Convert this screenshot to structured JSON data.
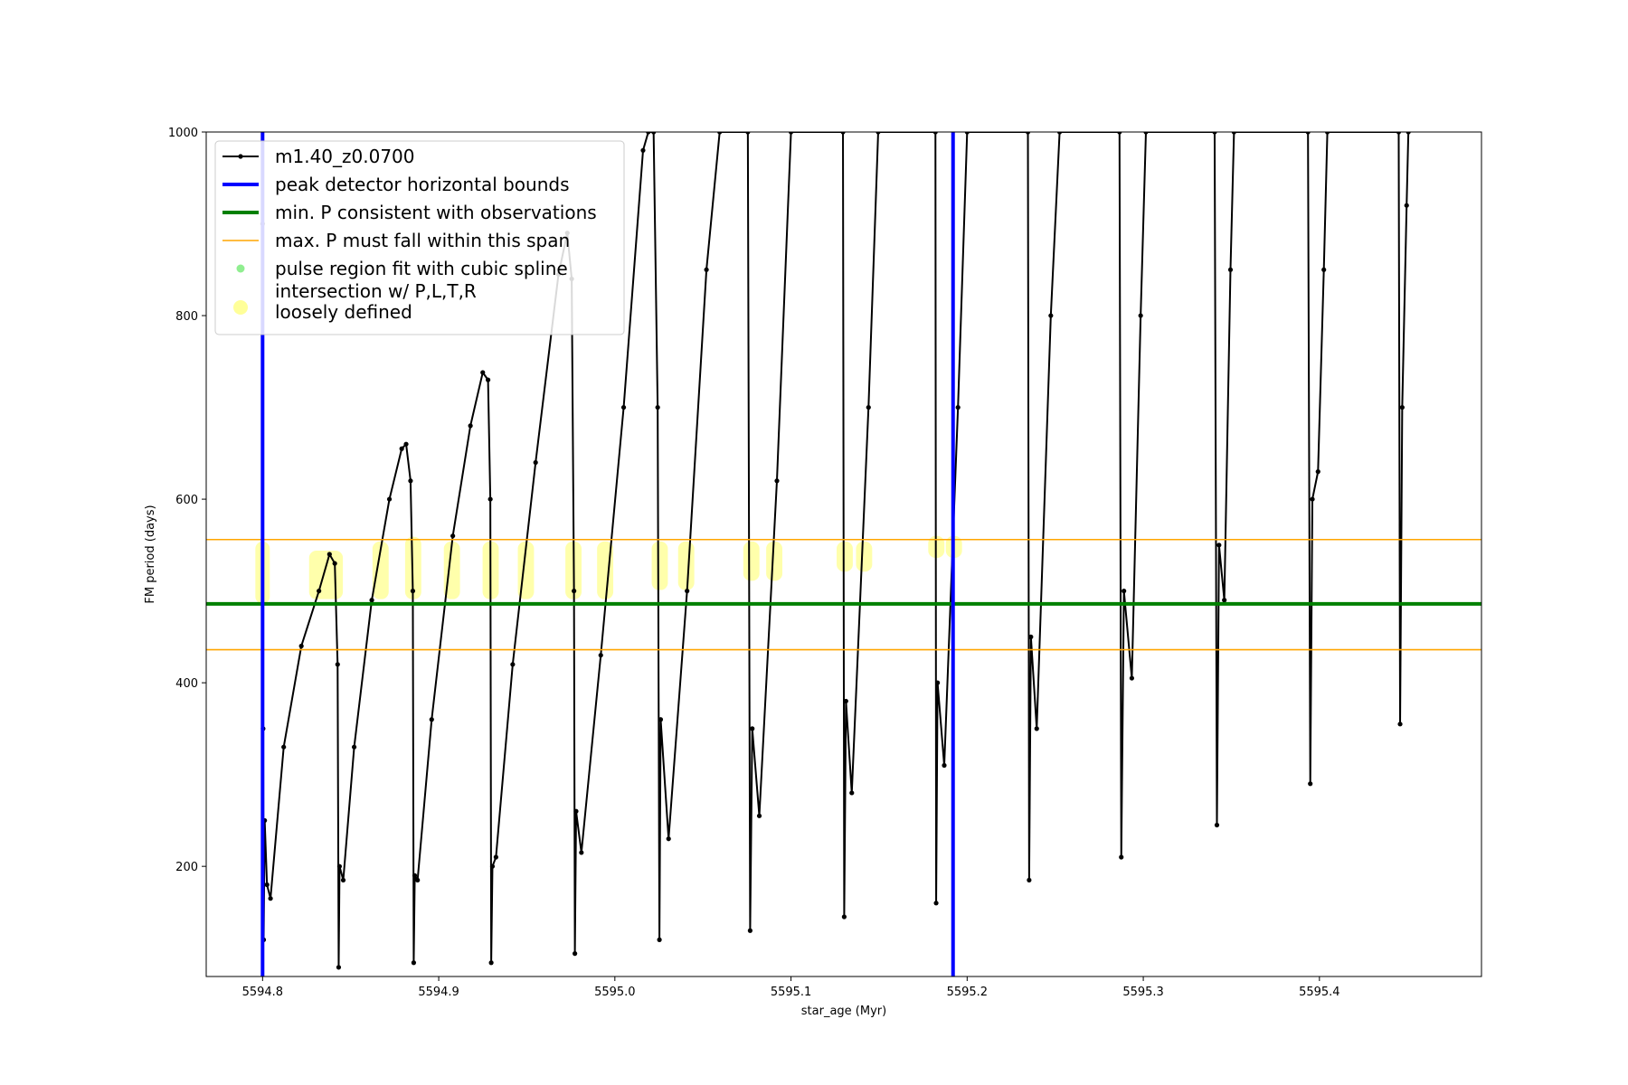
{
  "chart_data": {
    "type": "line",
    "xlabel": "star_age (Myr)",
    "ylabel": "FM period (days)",
    "xlim": [
      5594.768,
      5595.492
    ],
    "ylim": [
      80,
      1000
    ],
    "x_ticks": [
      "5594.8",
      "5594.9",
      "5595.0",
      "5595.1",
      "5595.2",
      "5595.3",
      "5595.4"
    ],
    "y_ticks": [
      "200",
      "400",
      "600",
      "800",
      "1000"
    ],
    "grid": false,
    "legend_position": "upper-left",
    "legend": [
      {
        "label": "m1.40_z0.0700",
        "kind": "line-marker",
        "color": "#000000"
      },
      {
        "label": "peak detector horizontal bounds",
        "kind": "line",
        "color": "#0000ff"
      },
      {
        "label": "min. P consistent with observations",
        "kind": "line",
        "color": "#008000"
      },
      {
        "label": "max. P must fall within this span",
        "kind": "line",
        "color": "#ffa500"
      },
      {
        "label": "pulse region fit with cubic spline",
        "kind": "dot",
        "color": "#90ee90"
      },
      {
        "label": "intersection w/ P,L,T,R",
        "label2": "loosely defined",
        "kind": "bigdot",
        "color": "#ffff99"
      }
    ],
    "series": [
      {
        "name": "m1.40_z0.0700",
        "color": "#000000",
        "points": [
          [
            5594.8,
            900
          ],
          [
            5594.8003,
            350
          ],
          [
            5594.8006,
            120
          ],
          [
            5594.8012,
            250
          ],
          [
            5594.8025,
            180
          ],
          [
            5594.8045,
            165
          ],
          [
            5594.812,
            330
          ],
          [
            5594.822,
            440
          ],
          [
            5594.832,
            500
          ],
          [
            5594.838,
            540
          ],
          [
            5594.841,
            530
          ],
          [
            5594.8426,
            420
          ],
          [
            5594.8432,
            90
          ],
          [
            5594.8437,
            200
          ],
          [
            5594.8458,
            185
          ],
          [
            5594.852,
            330
          ],
          [
            5594.862,
            490
          ],
          [
            5594.872,
            600
          ],
          [
            5594.879,
            655
          ],
          [
            5594.8815,
            660
          ],
          [
            5594.884,
            620
          ],
          [
            5594.8853,
            500
          ],
          [
            5594.8858,
            95
          ],
          [
            5594.8864,
            190
          ],
          [
            5594.888,
            185
          ],
          [
            5594.896,
            360
          ],
          [
            5594.908,
            560
          ],
          [
            5594.918,
            680
          ],
          [
            5594.925,
            738
          ],
          [
            5594.928,
            730
          ],
          [
            5594.9293,
            600
          ],
          [
            5594.9298,
            95
          ],
          [
            5594.9305,
            200
          ],
          [
            5594.9325,
            210
          ],
          [
            5594.942,
            420
          ],
          [
            5594.955,
            640
          ],
          [
            5594.968,
            845
          ],
          [
            5594.973,
            890
          ],
          [
            5594.9755,
            840
          ],
          [
            5594.9768,
            500
          ],
          [
            5594.9773,
            105
          ],
          [
            5594.978,
            260
          ],
          [
            5594.981,
            215
          ],
          [
            5594.992,
            430
          ],
          [
            5595.005,
            700
          ],
          [
            5595.016,
            980
          ],
          [
            5595.019,
            1000
          ],
          [
            5595.022,
            1000
          ],
          [
            5595.0243,
            700
          ],
          [
            5595.0253,
            120
          ],
          [
            5595.026,
            360
          ],
          [
            5595.0305,
            230
          ],
          [
            5595.041,
            500
          ],
          [
            5595.052,
            850
          ],
          [
            5595.0595,
            1000
          ],
          [
            5595.0755,
            1000
          ],
          [
            5595.0768,
            130
          ],
          [
            5595.078,
            350
          ],
          [
            5595.082,
            255
          ],
          [
            5595.092,
            620
          ],
          [
            5595.1,
            1000
          ],
          [
            5595.1295,
            1000
          ],
          [
            5595.1302,
            145
          ],
          [
            5595.1312,
            380
          ],
          [
            5595.1345,
            280
          ],
          [
            5595.144,
            700
          ],
          [
            5595.1495,
            1000
          ],
          [
            5595.182,
            1000
          ],
          [
            5595.1824,
            160
          ],
          [
            5595.1832,
            400
          ],
          [
            5595.187,
            310
          ],
          [
            5595.1948,
            700
          ],
          [
            5595.2,
            1000
          ],
          [
            5595.2345,
            1000
          ],
          [
            5595.2352,
            185
          ],
          [
            5595.2362,
            450
          ],
          [
            5595.2395,
            350
          ],
          [
            5595.2475,
            800
          ],
          [
            5595.2525,
            1000
          ],
          [
            5595.2865,
            1000
          ],
          [
            5595.2875,
            210
          ],
          [
            5595.289,
            500
          ],
          [
            5595.2935,
            405
          ],
          [
            5595.2985,
            800
          ],
          [
            5595.3015,
            1000
          ],
          [
            5595.3405,
            1000
          ],
          [
            5595.3418,
            245
          ],
          [
            5595.343,
            550
          ],
          [
            5595.346,
            490
          ],
          [
            5595.3495,
            850
          ],
          [
            5595.3515,
            1000
          ],
          [
            5595.3935,
            1000
          ],
          [
            5595.3948,
            290
          ],
          [
            5595.396,
            600
          ],
          [
            5595.3992,
            630
          ],
          [
            5595.4025,
            850
          ],
          [
            5595.4045,
            1000
          ],
          [
            5595.445,
            1000
          ],
          [
            5595.4458,
            355
          ],
          [
            5595.447,
            700
          ],
          [
            5595.4495,
            920
          ],
          [
            5595.4505,
            1000
          ]
        ]
      }
    ],
    "vertical_lines": [
      {
        "x": 5594.8,
        "color": "#0000ff"
      },
      {
        "x": 5595.192,
        "color": "#0000ff"
      }
    ],
    "horizontal_lines": [
      {
        "y": 486,
        "color": "#008000"
      },
      {
        "y": 556,
        "color": "#ffa500"
      },
      {
        "y": 436,
        "color": "#ffa500"
      }
    ],
    "intersection_regions": [
      {
        "x0": 5594.7995,
        "x1": 5594.8005,
        "y0": 490,
        "y1": 550
      },
      {
        "x0": 5594.83,
        "x1": 5594.842,
        "y0": 495,
        "y1": 540
      },
      {
        "x0": 5594.866,
        "x1": 5594.868,
        "y0": 495,
        "y1": 550
      },
      {
        "x0": 5594.8845,
        "x1": 5594.8865,
        "y0": 495,
        "y1": 555
      },
      {
        "x0": 5594.9065,
        "x1": 5594.9085,
        "y0": 495,
        "y1": 550
      },
      {
        "x0": 5594.9285,
        "x1": 5594.9305,
        "y0": 495,
        "y1": 550
      },
      {
        "x0": 5594.9485,
        "x1": 5594.9505,
        "y0": 495,
        "y1": 550
      },
      {
        "x0": 5594.9755,
        "x1": 5594.9775,
        "y0": 495,
        "y1": 550
      },
      {
        "x0": 5594.9935,
        "x1": 5594.9955,
        "y0": 495,
        "y1": 550
      },
      {
        "x0": 5595.0245,
        "x1": 5595.0265,
        "y0": 505,
        "y1": 550
      },
      {
        "x0": 5595.0395,
        "x1": 5595.0415,
        "y0": 505,
        "y1": 550
      },
      {
        "x0": 5595.0765,
        "x1": 5595.0785,
        "y0": 515,
        "y1": 550
      },
      {
        "x0": 5595.0895,
        "x1": 5595.0915,
        "y0": 515,
        "y1": 550
      },
      {
        "x0": 5595.1295,
        "x1": 5595.1315,
        "y0": 525,
        "y1": 550
      },
      {
        "x0": 5595.1405,
        "x1": 5595.1425,
        "y0": 525,
        "y1": 550
      },
      {
        "x0": 5595.1815,
        "x1": 5595.1835,
        "y0": 540,
        "y1": 556
      },
      {
        "x0": 5595.1915,
        "x1": 5595.1935,
        "y0": 540,
        "y1": 556
      }
    ]
  }
}
